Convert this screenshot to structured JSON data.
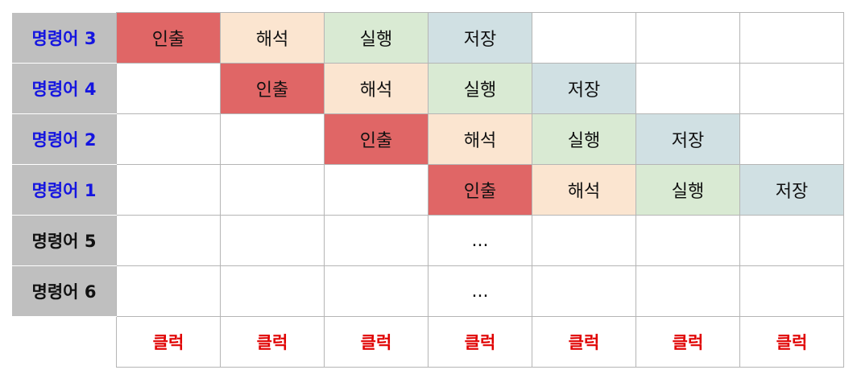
{
  "rows": [
    {
      "label": "명령어 3",
      "color": "blue",
      "cells": [
        "인출",
        "해석",
        "실행",
        "저장",
        "",
        "",
        ""
      ]
    },
    {
      "label": "명령어 4",
      "color": "blue",
      "cells": [
        "",
        "인출",
        "해석",
        "실행",
        "저장",
        "",
        ""
      ]
    },
    {
      "label": "명령어 2",
      "color": "blue",
      "cells": [
        "",
        "",
        "인출",
        "해석",
        "실행",
        "저장",
        ""
      ]
    },
    {
      "label": "명령어 1",
      "color": "blue",
      "cells": [
        "",
        "",
        "",
        "인출",
        "해석",
        "실행",
        "저장"
      ]
    },
    {
      "label": "명령어 5",
      "color": "black",
      "cells": [
        "",
        "",
        "",
        "...",
        "",
        "",
        ""
      ]
    },
    {
      "label": "명령어 6",
      "color": "black",
      "cells": [
        "",
        "",
        "",
        "...",
        "",
        "",
        ""
      ]
    }
  ],
  "clock_row": [
    "클럭",
    "클럭",
    "클럭",
    "클럭",
    "클럭",
    "클럭",
    "클럭"
  ],
  "colors": {
    "fetch": "#e06666",
    "decode": "#fbe5d0",
    "execute": "#d9ead3",
    "store": "#d0e0e3",
    "label_bg": "#bfbfbf",
    "label_blue": "#1515e0",
    "clock_red": "#e00000"
  }
}
